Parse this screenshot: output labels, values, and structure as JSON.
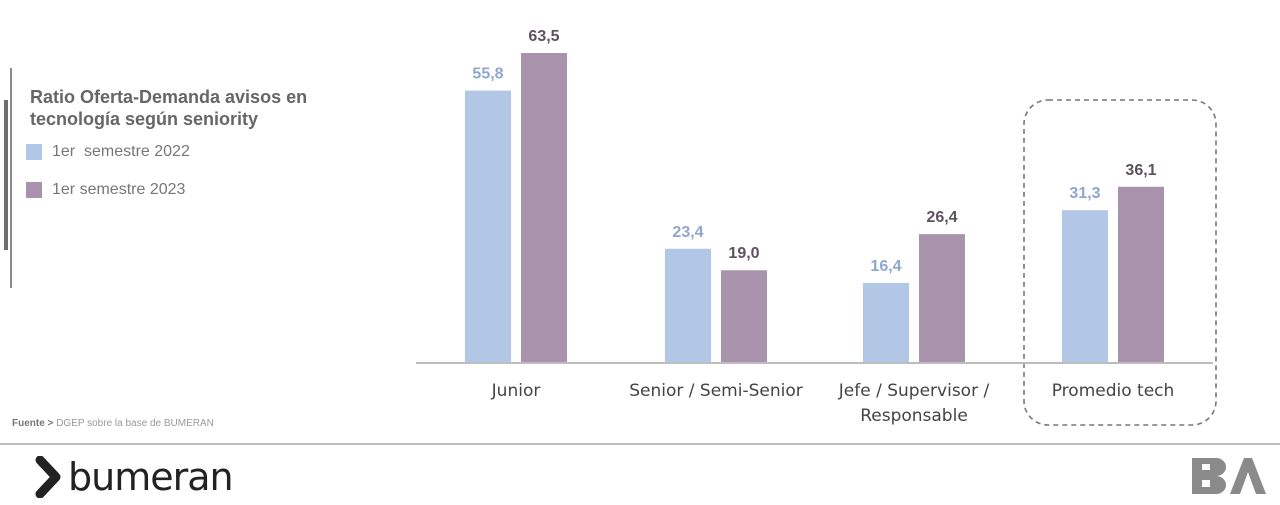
{
  "legend": {
    "title_line1": "Ratio Oferta-Demanda avisos en",
    "title_line2": "tecnología según seniority",
    "items": [
      {
        "label": "1er  semestre 2022",
        "color": "#b2c6e6"
      },
      {
        "label": "1er semestre 2023",
        "color": "#a992ab"
      }
    ]
  },
  "source": {
    "prefix": "Fuente >",
    "text": "DGEP sobre la base de BUMERAN"
  },
  "brand": {
    "name": "bumeran",
    "logo_text": "BA"
  },
  "chart_data": {
    "type": "bar",
    "title": "Ratio Oferta-Demanda avisos en tecnología según seniority",
    "categories": [
      [
        "Junior"
      ],
      [
        "Senior / Semi-Senior"
      ],
      [
        "Jefe / Supervisor /",
        "Responsable"
      ],
      [
        "Promedio tech"
      ]
    ],
    "series": [
      {
        "name": "1er  semestre 2022",
        "color": "#b2c6e6",
        "label_color": "#8fa6cf",
        "values": [
          55.8,
          23.4,
          16.4,
          31.3
        ],
        "labels": [
          "55,8",
          "23,4",
          "16,4",
          "31,3"
        ]
      },
      {
        "name": "1er semestre 2023",
        "color": "#a992ab",
        "label_color": "#5e5160",
        "values": [
          63.5,
          19.0,
          26.4,
          36.1
        ],
        "labels": [
          "63,5",
          "19,0",
          "26,4",
          "36,1"
        ]
      }
    ],
    "ylim": [
      0,
      63.5
    ],
    "grid": false,
    "highlighted_category": "Promedio tech",
    "legend_position": "left"
  }
}
